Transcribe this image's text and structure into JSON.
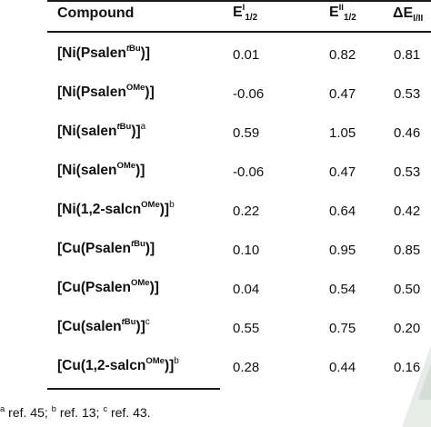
{
  "header": {
    "compound": "Compound",
    "e1_main": "E",
    "e1_sup": "I",
    "e1_sub": "1/2",
    "e2_main": "E",
    "e2_sup": "II",
    "e2_sub": "1/2",
    "de_main": "ΔE",
    "de_sub": "I/II"
  },
  "rows": [
    {
      "pre": "[Ni(Psalen",
      "sup": "tBu",
      "post": ")]",
      "ref": "",
      "e1": "0.01",
      "e2": "0.82",
      "de": "0.81"
    },
    {
      "pre": "[Ni(Psalen",
      "sup": "OMe",
      "post": ")]",
      "ref": "",
      "e1": "-0.06",
      "e2": "0.47",
      "de": "0.53"
    },
    {
      "pre": "[Ni(salen",
      "sup": "tBu",
      "post": ")]",
      "ref": "a",
      "e1": "0.59",
      "e2": "1.05",
      "de": "0.46"
    },
    {
      "pre": "[Ni(salen",
      "sup": "OMe",
      "post": ")]",
      "ref": "",
      "e1": "-0.06",
      "e2": "0.47",
      "de": "0.53"
    },
    {
      "pre": "[Ni(1,2-salcn",
      "sup": "OMe",
      "post": ")]",
      "ref": "b",
      "e1": "0.22",
      "e2": "0.64",
      "de": "0.42"
    },
    {
      "pre": "[Cu(Psalen",
      "sup": "tBu",
      "post": ")]",
      "ref": "",
      "e1": "0.10",
      "e2": "0.95",
      "de": "0.85"
    },
    {
      "pre": "[Cu(Psalen",
      "sup": "OMe",
      "post": ")]",
      "ref": "",
      "e1": "0.04",
      "e2": "0.54",
      "de": "0.50"
    },
    {
      "pre": "[Cu(salen",
      "sup": "tBu",
      "post": ")]",
      "ref": "c",
      "e1": "0.55",
      "e2": "0.75",
      "de": "0.20"
    },
    {
      "pre": "[Cu(1,2-salcn",
      "sup": "OMe",
      "post": ")]",
      "ref": "b",
      "e1": "0.28",
      "e2": "0.44",
      "de": "0.16"
    }
  ],
  "footnote": {
    "a_mark": "a",
    "a_text": " ref. 45; ",
    "b_mark": "b",
    "b_text": " ref. 13; ",
    "c_mark": "c",
    "c_text": " ref. 43."
  },
  "colors": {
    "rule": "#1a1a1a",
    "watermark": "#e7ece9"
  }
}
